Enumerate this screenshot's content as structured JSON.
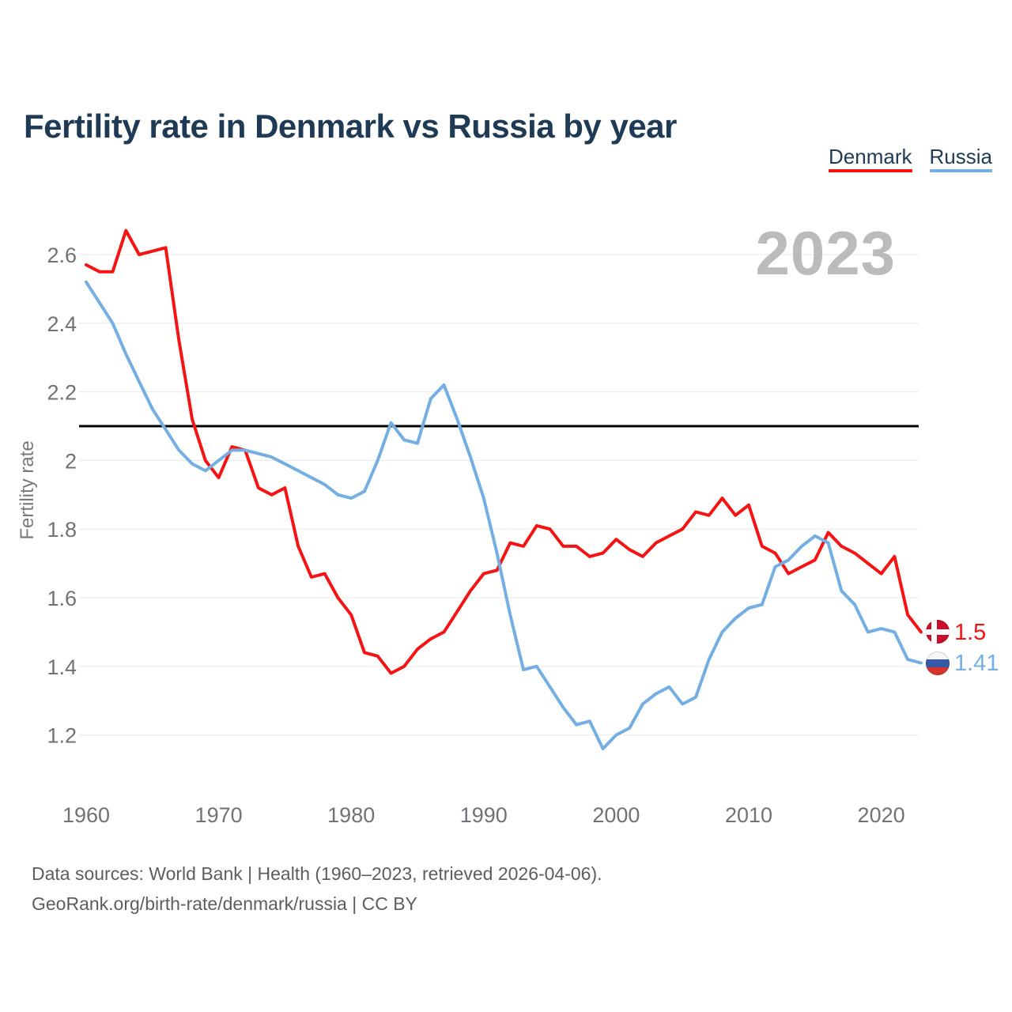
{
  "watermark": "2023",
  "chart_data": {
    "type": "line",
    "title": "Fertility rate in Denmark vs Russia by year",
    "xlabel": "",
    "ylabel": "Fertility rate",
    "grid": "horizontal",
    "legend_position": "top-right",
    "ylim": [
      1.1,
      2.72
    ],
    "xlim": [
      1960,
      2023
    ],
    "y_ticks": [
      2.6,
      2.4,
      2.2,
      2,
      1.8,
      1.6,
      1.4,
      1.2
    ],
    "x_ticks": [
      1960,
      1970,
      1980,
      1990,
      2000,
      2010,
      2020
    ],
    "reference_line": {
      "value": 2.1,
      "color": "#000000"
    },
    "x": [
      1960,
      1961,
      1962,
      1963,
      1964,
      1965,
      1966,
      1967,
      1968,
      1969,
      1970,
      1971,
      1972,
      1973,
      1974,
      1975,
      1976,
      1977,
      1978,
      1979,
      1980,
      1981,
      1982,
      1983,
      1984,
      1985,
      1986,
      1987,
      1988,
      1989,
      1990,
      1991,
      1992,
      1993,
      1994,
      1995,
      1996,
      1997,
      1998,
      1999,
      2000,
      2001,
      2002,
      2003,
      2004,
      2005,
      2006,
      2007,
      2008,
      2009,
      2010,
      2011,
      2012,
      2013,
      2014,
      2015,
      2016,
      2017,
      2018,
      2019,
      2020,
      2021,
      2022,
      2023
    ],
    "series": [
      {
        "name": "Denmark",
        "color": "#f41414",
        "flag": "denmark-flag",
        "end_label": "1.5",
        "values": [
          2.57,
          2.55,
          2.55,
          2.67,
          2.6,
          2.61,
          2.62,
          2.35,
          2.12,
          2,
          1.95,
          2.04,
          2.03,
          1.92,
          1.9,
          1.92,
          1.75,
          1.66,
          1.67,
          1.6,
          1.55,
          1.44,
          1.43,
          1.38,
          1.4,
          1.45,
          1.48,
          1.5,
          1.56,
          1.62,
          1.67,
          1.68,
          1.76,
          1.75,
          1.81,
          1.8,
          1.75,
          1.75,
          1.72,
          1.73,
          1.77,
          1.74,
          1.72,
          1.76,
          1.78,
          1.8,
          1.85,
          1.84,
          1.89,
          1.84,
          1.87,
          1.75,
          1.73,
          1.67,
          1.69,
          1.71,
          1.79,
          1.75,
          1.73,
          1.7,
          1.67,
          1.72,
          1.55,
          1.5
        ]
      },
      {
        "name": "Russia",
        "color": "#74aee3",
        "flag": "russia-flag",
        "end_label": "1.41",
        "values": [
          2.52,
          2.46,
          2.4,
          2.31,
          2.23,
          2.15,
          2.09,
          2.03,
          1.99,
          1.97,
          2,
          2.03,
          2.03,
          2.02,
          2.01,
          1.99,
          1.97,
          1.95,
          1.93,
          1.9,
          1.89,
          1.91,
          2,
          2.11,
          2.06,
          2.05,
          2.18,
          2.22,
          2.12,
          2.01,
          1.89,
          1.73,
          1.55,
          1.39,
          1.4,
          1.34,
          1.28,
          1.23,
          1.24,
          1.16,
          1.2,
          1.22,
          1.29,
          1.32,
          1.34,
          1.29,
          1.31,
          1.42,
          1.5,
          1.54,
          1.57,
          1.58,
          1.69,
          1.71,
          1.75,
          1.78,
          1.76,
          1.62,
          1.58,
          1.5,
          1.51,
          1.5,
          1.42,
          1.41
        ]
      }
    ]
  },
  "footer": {
    "line1": "Data sources: World Bank | Health (1960–2023, retrieved 2026-04-06).",
    "line2": "GeoRank.org/birth-rate/denmark/russia | CC BY"
  }
}
